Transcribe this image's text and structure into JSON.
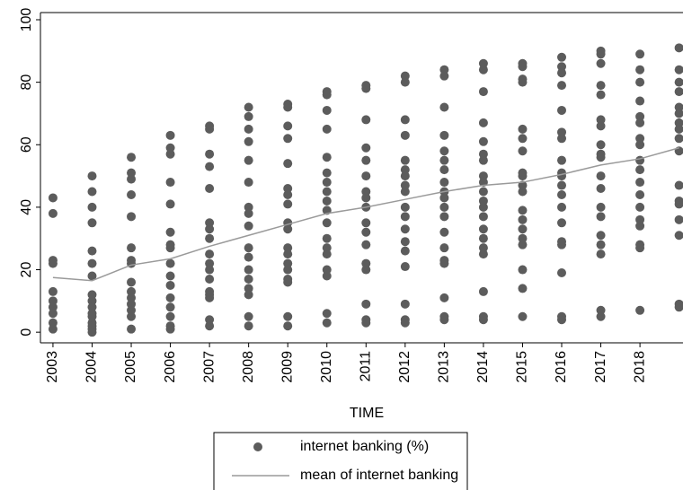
{
  "chart_data": {
    "type": "scatter",
    "x_label": "TIME",
    "xlim": [
      2002.68,
      2019.1
    ],
    "ylim": [
      -3.4,
      102.3
    ],
    "xticks": [
      2003,
      2004,
      2005,
      2006,
      2007,
      2008,
      2009,
      2010,
      2011,
      2012,
      2013,
      2014,
      2015,
      2016,
      2017,
      2018
    ],
    "yticks": [
      0,
      20,
      40,
      60,
      80,
      100
    ],
    "series": [
      {
        "name": "internet banking (%)",
        "type": "scatter",
        "color": "#5c5c5c",
        "x": [
          2003,
          2003,
          2003,
          2003,
          2003,
          2003,
          2003,
          2003,
          2003,
          2003,
          2004,
          2004,
          2004,
          2004,
          2004,
          2004,
          2004,
          2004,
          2004,
          2004,
          2004,
          2004,
          2004,
          2004,
          2004,
          2004,
          2005,
          2005,
          2005,
          2005,
          2005,
          2005,
          2005,
          2005,
          2005,
          2005,
          2005,
          2005,
          2005,
          2005,
          2005,
          2006,
          2006,
          2006,
          2006,
          2006,
          2006,
          2006,
          2006,
          2006,
          2006,
          2006,
          2006,
          2006,
          2006,
          2006,
          2006,
          2007,
          2007,
          2007,
          2007,
          2007,
          2007,
          2007,
          2007,
          2007,
          2007,
          2007,
          2007,
          2007,
          2007,
          2007,
          2007,
          2007,
          2008,
          2008,
          2008,
          2008,
          2008,
          2008,
          2008,
          2008,
          2008,
          2008,
          2008,
          2008,
          2008,
          2008,
          2008,
          2008,
          2008,
          2009,
          2009,
          2009,
          2009,
          2009,
          2009,
          2009,
          2009,
          2009,
          2009,
          2009,
          2009,
          2009,
          2009,
          2009,
          2009,
          2009,
          2009,
          2010,
          2010,
          2010,
          2010,
          2010,
          2010,
          2010,
          2010,
          2010,
          2010,
          2010,
          2010,
          2010,
          2010,
          2010,
          2010,
          2010,
          2010,
          2011,
          2011,
          2011,
          2011,
          2011,
          2011,
          2011,
          2011,
          2011,
          2011,
          2011,
          2011,
          2011,
          2011,
          2011,
          2011,
          2011,
          2012,
          2012,
          2012,
          2012,
          2012,
          2012,
          2012,
          2012,
          2012,
          2012,
          2012,
          2012,
          2012,
          2012,
          2012,
          2012,
          2012,
          2012,
          2013,
          2013,
          2013,
          2013,
          2013,
          2013,
          2013,
          2013,
          2013,
          2013,
          2013,
          2013,
          2013,
          2013,
          2013,
          2013,
          2013,
          2013,
          2013,
          2014,
          2014,
          2014,
          2014,
          2014,
          2014,
          2014,
          2014,
          2014,
          2014,
          2014,
          2014,
          2014,
          2014,
          2014,
          2014,
          2014,
          2014,
          2014,
          2014,
          2015,
          2015,
          2015,
          2015,
          2015,
          2015,
          2015,
          2015,
          2015,
          2015,
          2015,
          2015,
          2015,
          2015,
          2015,
          2015,
          2015,
          2015,
          2015,
          2016,
          2016,
          2016,
          2016,
          2016,
          2016,
          2016,
          2016,
          2016,
          2016,
          2016,
          2016,
          2016,
          2016,
          2016,
          2016,
          2016,
          2016,
          2016,
          2017,
          2017,
          2017,
          2017,
          2017,
          2017,
          2017,
          2017,
          2017,
          2017,
          2017,
          2017,
          2017,
          2017,
          2017,
          2017,
          2017,
          2017,
          2017,
          2018,
          2018,
          2018,
          2018,
          2018,
          2018,
          2018,
          2018,
          2018,
          2018,
          2018,
          2018,
          2018,
          2018,
          2018,
          2018,
          2018,
          2018,
          2019,
          2019,
          2019,
          2019,
          2019,
          2019,
          2019,
          2019,
          2019,
          2019,
          2019,
          2019,
          2019,
          2019,
          2019,
          2019,
          2019
        ],
        "values": [
          43,
          38,
          23,
          22,
          13,
          10,
          8,
          6,
          3,
          1,
          50,
          45,
          40,
          35,
          26,
          22,
          18,
          12,
          10,
          8,
          6,
          5,
          3,
          2,
          1,
          0,
          56,
          51,
          49,
          44,
          37,
          27,
          23,
          22,
          16,
          13,
          11,
          9,
          7,
          5,
          1,
          63,
          59,
          57,
          48,
          41,
          32,
          28,
          27,
          22,
          18,
          15,
          11,
          8,
          5,
          2,
          1,
          66,
          65,
          57,
          53,
          46,
          35,
          33,
          30,
          25,
          22,
          20,
          17,
          13,
          12,
          11,
          4,
          2,
          72,
          69,
          65,
          61,
          55,
          48,
          40,
          38,
          34,
          27,
          24,
          20,
          17,
          14,
          12,
          5,
          2,
          73,
          72,
          66,
          62,
          54,
          46,
          44,
          41,
          35,
          33,
          27,
          25,
          22,
          20,
          17,
          16,
          5,
          2,
          77,
          76,
          71,
          65,
          56,
          51,
          48,
          45,
          42,
          39,
          35,
          30,
          27,
          25,
          20,
          18,
          6,
          3,
          79,
          78,
          68,
          59,
          55,
          50,
          45,
          43,
          40,
          35,
          32,
          28,
          22,
          20,
          9,
          4,
          3,
          82,
          80,
          68,
          63,
          55,
          52,
          50,
          47,
          45,
          40,
          37,
          33,
          29,
          26,
          21,
          9,
          4,
          3,
          84,
          82,
          72,
          63,
          58,
          55,
          52,
          48,
          45,
          43,
          40,
          37,
          32,
          27,
          23,
          22,
          11,
          5,
          4,
          86,
          84,
          77,
          67,
          61,
          57,
          55,
          50,
          48,
          45,
          42,
          40,
          37,
          33,
          30,
          27,
          25,
          13,
          5,
          4,
          86,
          85,
          81,
          80,
          65,
          62,
          58,
          51,
          50,
          47,
          45,
          39,
          36,
          33,
          30,
          28,
          20,
          14,
          5,
          88,
          85,
          83,
          79,
          71,
          64,
          62,
          55,
          51,
          50,
          47,
          44,
          40,
          35,
          29,
          28,
          19,
          5,
          4,
          90,
          89,
          86,
          79,
          76,
          68,
          66,
          60,
          57,
          56,
          50,
          46,
          40,
          37,
          31,
          28,
          25,
          7,
          5,
          89,
          84,
          80,
          74,
          69,
          67,
          62,
          60,
          55,
          52,
          48,
          44,
          40,
          36,
          34,
          28,
          27,
          7,
          91,
          84,
          80,
          77,
          72,
          70,
          67,
          65,
          62,
          58,
          47,
          42,
          41,
          36,
          31,
          9,
          8
        ]
      },
      {
        "name": "mean of internet banking",
        "type": "line",
        "color": "#9a9a9a",
        "x": [
          2003,
          2004,
          2005,
          2006,
          2007,
          2008,
          2009,
          2010,
          2011,
          2012,
          2013,
          2014,
          2015,
          2016,
          2017,
          2018,
          2019
        ],
        "values": [
          17.5,
          16.5,
          21.5,
          23.5,
          27.5,
          31,
          34.5,
          38,
          40,
          42.5,
          45,
          47,
          48,
          50.5,
          53.5,
          55.5,
          59
        ]
      }
    ]
  }
}
